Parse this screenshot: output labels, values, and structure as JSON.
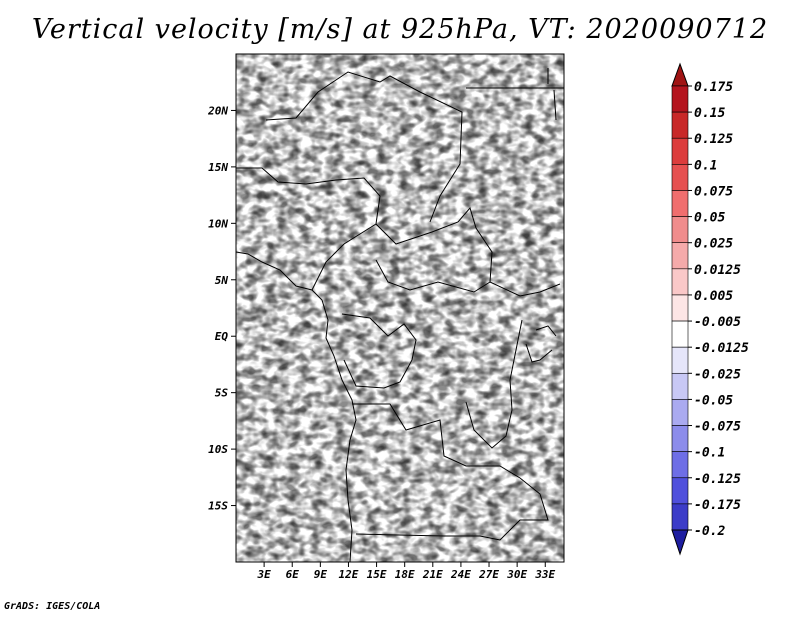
{
  "title": "Vertical velocity [m/s] at 925hPa, VT: 2020090712",
  "credit": "GrADS: IGES/COLA",
  "map": {
    "lon_range": [
      0,
      35
    ],
    "lat_range": [
      -20,
      25
    ],
    "lat_ticks": [
      {
        "value": 20,
        "label": "20N"
      },
      {
        "value": 15,
        "label": "15N"
      },
      {
        "value": 10,
        "label": "10N"
      },
      {
        "value": 5,
        "label": "5N"
      },
      {
        "value": 0,
        "label": "EQ"
      },
      {
        "value": -5,
        "label": "5S"
      },
      {
        "value": -10,
        "label": "10S"
      },
      {
        "value": -15,
        "label": "15S"
      }
    ],
    "lon_ticks": [
      {
        "value": 3,
        "label": "3E"
      },
      {
        "value": 6,
        "label": "6E"
      },
      {
        "value": 9,
        "label": "9E"
      },
      {
        "value": 12,
        "label": "12E"
      },
      {
        "value": 15,
        "label": "15E"
      },
      {
        "value": 18,
        "label": "18E"
      },
      {
        "value": 21,
        "label": "21E"
      },
      {
        "value": 24,
        "label": "24E"
      },
      {
        "value": 27,
        "label": "27E"
      },
      {
        "value": 30,
        "label": "30E"
      },
      {
        "value": 33,
        "label": "33E"
      }
    ]
  },
  "colorbar": {
    "levels": [
      {
        "label": "0.175",
        "color": "#b4141e"
      },
      {
        "label": "0.15",
        "color": "#c82828"
      },
      {
        "label": "0.125",
        "color": "#dc3c3c"
      },
      {
        "label": "0.1",
        "color": "#e65050"
      },
      {
        "label": "0.075",
        "color": "#f06e6e"
      },
      {
        "label": "0.05",
        "color": "#f08c8c"
      },
      {
        "label": "0.025",
        "color": "#f5aaaa"
      },
      {
        "label": "0.0125",
        "color": "#fac8c8"
      },
      {
        "label": "0.005",
        "color": "#fde6e6"
      },
      {
        "label": "-0.005",
        "color": "#ffffff"
      },
      {
        "label": "-0.0125",
        "color": "#e6e6fa"
      },
      {
        "label": "-0.025",
        "color": "#c8c8f5"
      },
      {
        "label": "-0.05",
        "color": "#aaaaf0"
      },
      {
        "label": "-0.075",
        "color": "#8c8ceb"
      },
      {
        "label": "-0.1",
        "color": "#6e6ee6"
      },
      {
        "label": "-0.125",
        "color": "#5050dc"
      },
      {
        "label": "-0.175",
        "color": "#3c3cc8"
      },
      {
        "label": "-0.2",
        "color": "#2828b4"
      }
    ],
    "top_color": "#a01414",
    "bottom_color": "#1e1ea0"
  },
  "colors": {
    "positive": "#e06060",
    "negative": "#6060e0",
    "boundary": "#000000"
  }
}
